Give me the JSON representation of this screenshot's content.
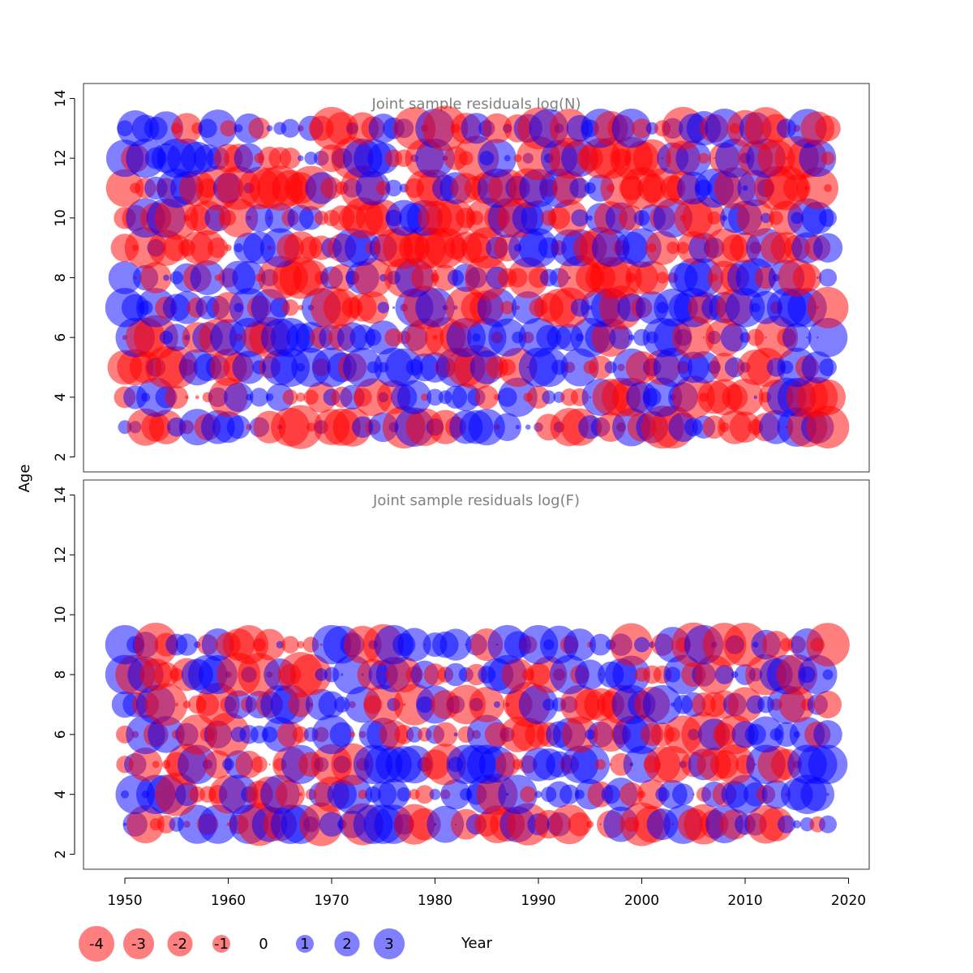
{
  "colors": {
    "negative": "#ff0000",
    "positive": "#0000ff",
    "bubble_alpha": 0.5,
    "title_color": "#808080",
    "axis_color": "#000000"
  },
  "chart_data": [
    {
      "type": "scatter",
      "subtype": "bubble",
      "title": "Joint sample residuals log(N)",
      "ylabel": "Age",
      "xlim": [
        1946,
        2022
      ],
      "ylim": [
        1.5,
        14.5
      ],
      "yticks": [
        2,
        4,
        6,
        8,
        10,
        12,
        14
      ],
      "x_start": 1950,
      "x_end": 2018,
      "ages": [
        3,
        4,
        5,
        6,
        7,
        8,
        9,
        10,
        11,
        12,
        13
      ],
      "residual_range": [
        -4,
        3
      ],
      "bubble_size": "proportional to absolute residual",
      "color_rule": "red = negative residual, blue = positive residual",
      "seed": 17
    },
    {
      "type": "scatter",
      "subtype": "bubble",
      "title": "Joint sample residuals log(F)",
      "ylabel": "Age",
      "xlabel": "Year",
      "xlim": [
        1946,
        2022
      ],
      "ylim": [
        1.5,
        14.5
      ],
      "yticks": [
        2,
        4,
        6,
        8,
        10,
        12,
        14
      ],
      "xticks": [
        1950,
        1960,
        1970,
        1980,
        1990,
        2000,
        2010,
        2020
      ],
      "x_start": 1950,
      "x_end": 2018,
      "ages": [
        3,
        4,
        5,
        6,
        7,
        8,
        9
      ],
      "residual_range": [
        -4,
        3
      ],
      "bubble_size": "proportional to absolute residual",
      "color_rule": "red = negative residual, blue = positive residual",
      "seed": 91
    }
  ],
  "shared": {
    "ylabel": "Age",
    "xlabel": "Year"
  },
  "legend": {
    "items": [
      {
        "label": "-4",
        "value": -4
      },
      {
        "label": "-3",
        "value": -3
      },
      {
        "label": "-2",
        "value": -2
      },
      {
        "label": "-1",
        "value": -1
      },
      {
        "label": "0",
        "value": 0
      },
      {
        "label": "1",
        "value": 1
      },
      {
        "label": "2",
        "value": 2
      },
      {
        "label": "3",
        "value": 3
      }
    ]
  }
}
